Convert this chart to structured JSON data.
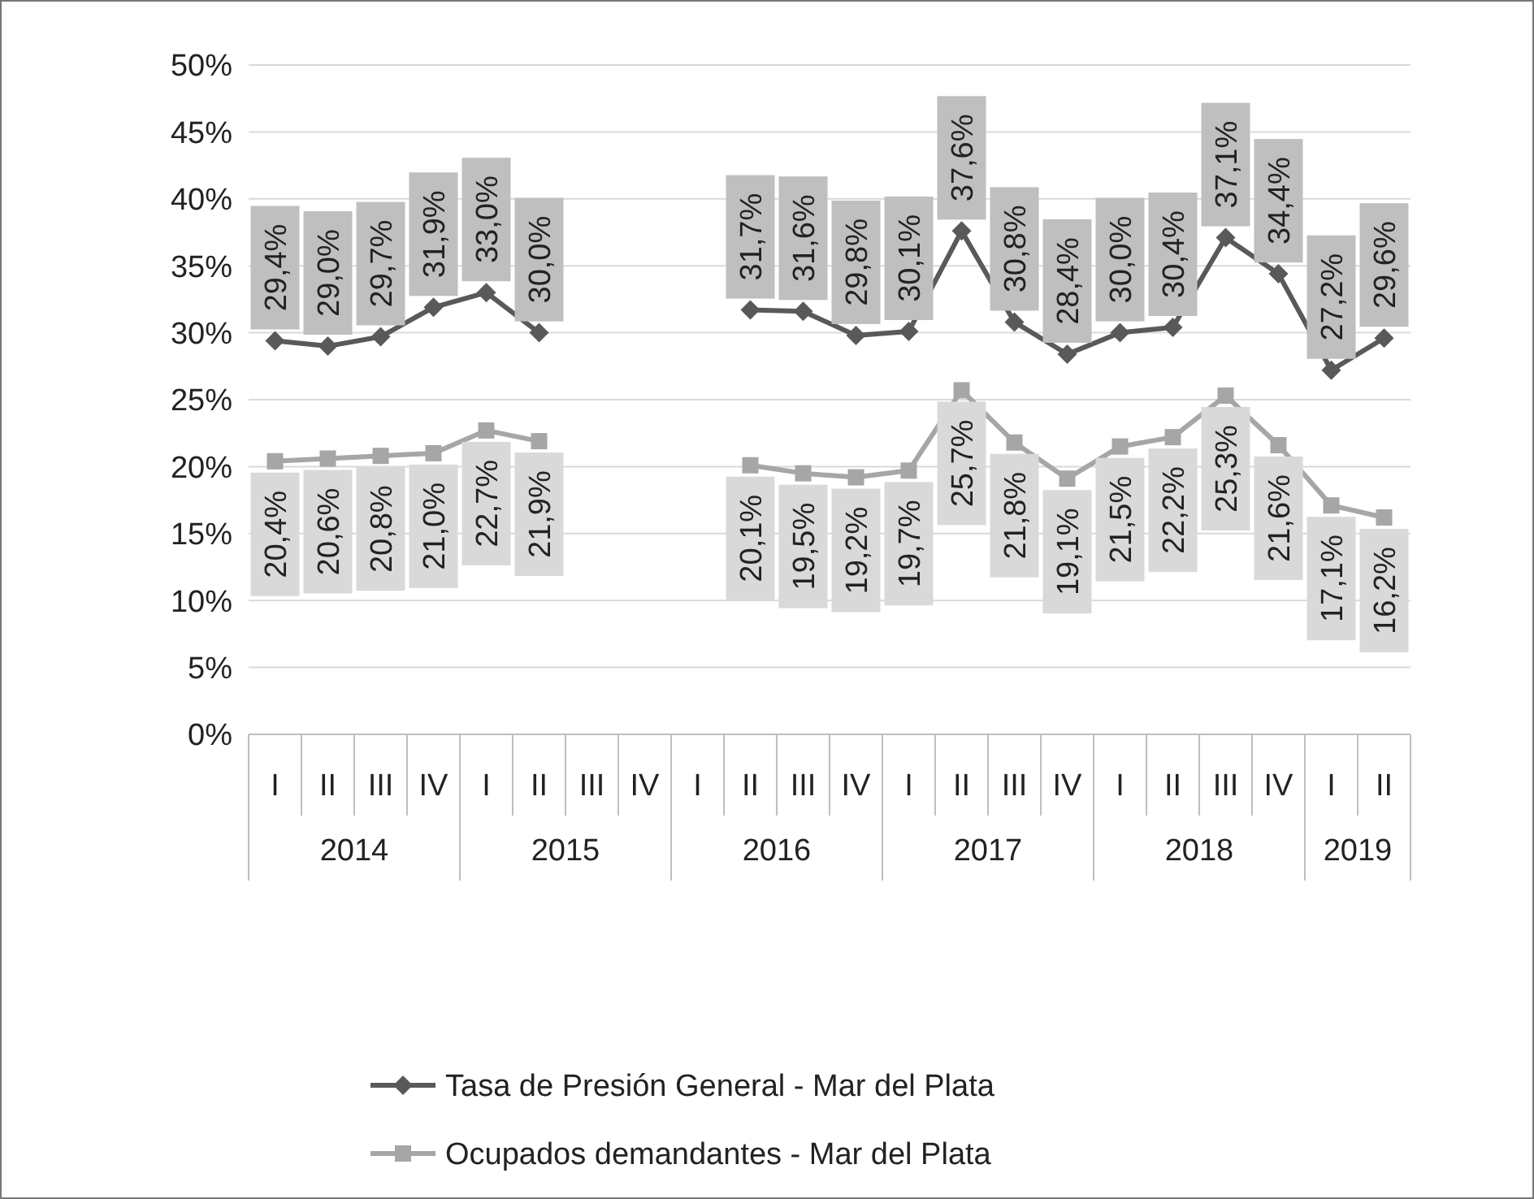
{
  "chart_data": {
    "type": "line",
    "categories": [
      "I",
      "II",
      "III",
      "IV",
      "I",
      "II",
      "III",
      "IV",
      "I",
      "II",
      "III",
      "IV",
      "I",
      "II",
      "III",
      "IV",
      "I",
      "II",
      "III",
      "IV",
      "I",
      "II"
    ],
    "annotations": [
      "2014",
      "2015",
      "2016",
      "2017",
      "2018",
      "2019"
    ],
    "ylim": [
      0,
      50
    ],
    "yticks": [
      {
        "value": 0,
        "label": "0%"
      },
      {
        "value": 5,
        "label": "5%"
      },
      {
        "value": 10,
        "label": "10%"
      },
      {
        "value": 15,
        "label": "15%"
      },
      {
        "value": 20,
        "label": "20%"
      },
      {
        "value": 25,
        "label": "25%"
      },
      {
        "value": 30,
        "label": "30%"
      },
      {
        "value": 35,
        "label": "35%"
      },
      {
        "value": 40,
        "label": "40%"
      },
      {
        "value": 45,
        "label": "45%"
      },
      {
        "value": 50,
        "label": "50%"
      }
    ],
    "grid": "y",
    "legend": "bottom",
    "series": [
      {
        "name": "Tasa de Presión General - Mar del Plata",
        "color": "#595959",
        "marker": "diamond",
        "values": [
          29.4,
          29.0,
          29.7,
          31.9,
          33.0,
          30.0,
          null,
          null,
          null,
          31.7,
          31.6,
          29.8,
          30.1,
          37.6,
          30.8,
          28.4,
          30.0,
          30.4,
          37.1,
          34.4,
          27.2,
          29.6
        ],
        "value_labels": [
          "29,4%",
          "29,0%",
          "29,7%",
          "31,9%",
          "33,0%",
          "30,0%",
          null,
          null,
          null,
          "31,7%",
          "31,6%",
          "29,8%",
          "30,1%",
          "37,6%",
          "30,8%",
          "28,4%",
          "30,0%",
          "30,4%",
          "37,1%",
          "34,4%",
          "27,2%",
          "29,6%"
        ]
      },
      {
        "name": "Ocupados demandantes - Mar del Plata",
        "color": "#a6a6a6",
        "marker": "square",
        "values": [
          20.4,
          20.6,
          20.8,
          21.0,
          22.7,
          21.9,
          null,
          null,
          null,
          20.1,
          19.5,
          19.2,
          19.7,
          25.7,
          21.8,
          19.1,
          21.5,
          22.2,
          25.3,
          21.6,
          17.1,
          16.2
        ],
        "value_labels": [
          "20,4%",
          "20,6%",
          "20,8%",
          "21,0%",
          "22,7%",
          "21,9%",
          null,
          null,
          null,
          "20,1%",
          "19,5%",
          "19,2%",
          "19,7%",
          "25,7%",
          "21,8%",
          "19,1%",
          "21,5%",
          "22,2%",
          "25,3%",
          "21,6%",
          "17,1%",
          "16,2%"
        ]
      }
    ]
  }
}
